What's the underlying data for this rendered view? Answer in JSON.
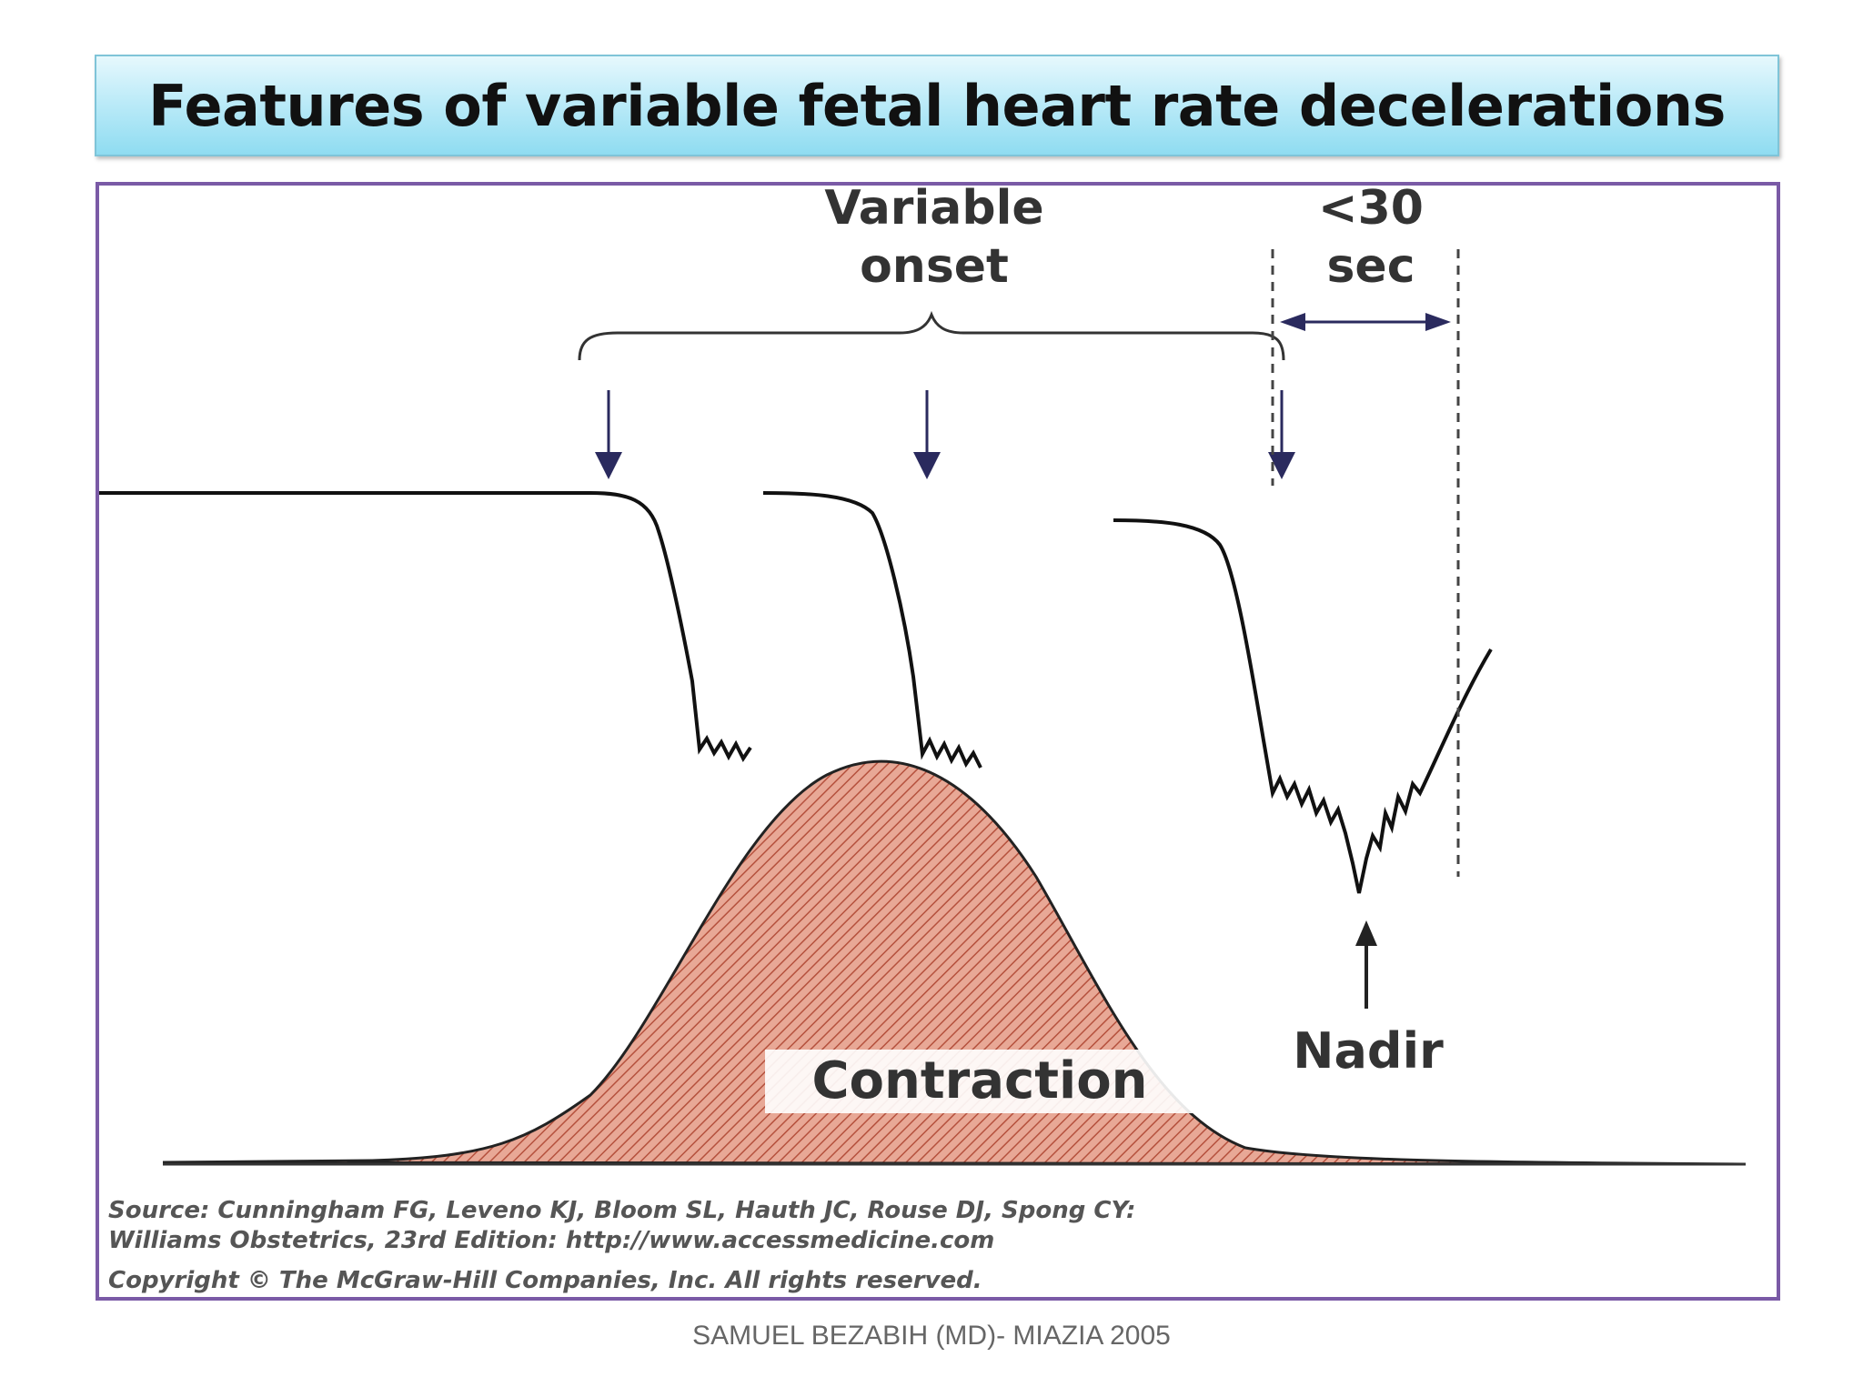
{
  "slide": {
    "title": "Features of variable fetal heart rate decelerations",
    "footer": "SAMUEL BEZABIH (MD)- MIAZIA 2005"
  },
  "figure": {
    "labels": {
      "variable_line1": "Variable",
      "variable_line2": "onset",
      "duration_line1": "<30",
      "duration_line2": "sec",
      "nadir": "Nadir",
      "contraction": "Contraction"
    },
    "source_lines": [
      "Source: Cunningham FG, Leveno KJ, Bloom SL, Hauth JC, Rouse DJ, Spong CY:",
      "Williams Obstetrics, 23rd Edition: http://www.accessmedicine.com",
      "Copyright © The McGraw-Hill Companies, Inc. All rights reserved."
    ],
    "colors": {
      "contraction_fill": "#e8a896",
      "contraction_hatch": "#b5513d",
      "arrow": "#2a2a5e",
      "trace": "#111111",
      "frame": "#7a5aa6"
    }
  }
}
